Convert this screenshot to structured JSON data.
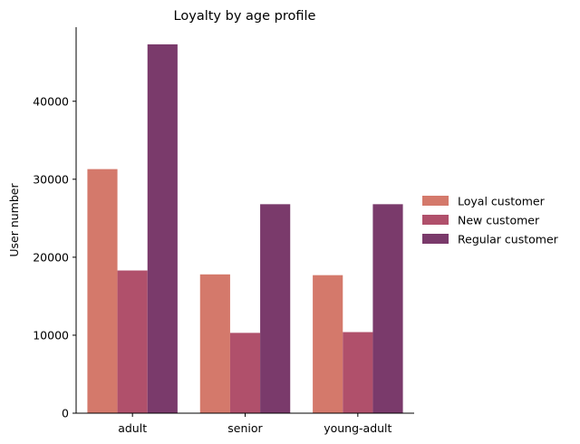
{
  "chart_data": {
    "type": "bar",
    "title": "Loyalty by age profile",
    "xlabel": "",
    "ylabel": "User number",
    "categories": [
      "adult",
      "senior",
      "young-adult"
    ],
    "series": [
      {
        "name": "Loyal customer",
        "color": "#d4796b",
        "values": [
          31300,
          17800,
          17700
        ]
      },
      {
        "name": "New customer",
        "color": "#b0506b",
        "values": [
          18300,
          10300,
          10400
        ]
      },
      {
        "name": "Regular customer",
        "color": "#7a3a6b",
        "values": [
          47300,
          26800,
          26800
        ]
      }
    ],
    "ylim": [
      0,
      49500
    ],
    "yticks": [
      0,
      10000,
      20000,
      30000,
      40000
    ],
    "ytick_labels": [
      "0",
      "10000",
      "20000",
      "30000",
      "40000"
    ],
    "grid": false,
    "legend_position": "right"
  }
}
